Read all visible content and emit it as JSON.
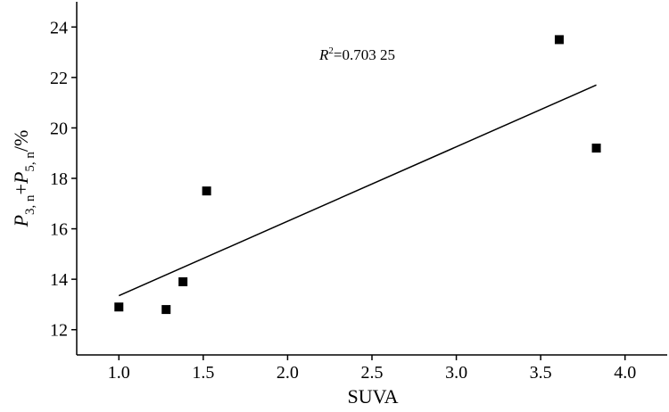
{
  "chart_data": {
    "type": "scatter",
    "xlabel": "SUVA",
    "ylabel": {
      "p1": "P",
      "s1": "3, n",
      "plus": "+",
      "p2": "P",
      "s2": "5, n",
      "unit": "/%"
    },
    "xlim": [
      0.75,
      4.25
    ],
    "ylim": [
      11,
      25
    ],
    "xticks": [
      1.0,
      1.5,
      2.0,
      2.5,
      3.0,
      3.5,
      4.0
    ],
    "xtick_labels": [
      "1.0",
      "1.5",
      "2.0",
      "2.5",
      "3.0",
      "3.5",
      "4.0"
    ],
    "yticks": [
      12,
      14,
      16,
      18,
      20,
      22,
      24
    ],
    "ytick_labels": [
      "12",
      "14",
      "16",
      "18",
      "20",
      "22",
      "24"
    ],
    "points": [
      {
        "x": 1.0,
        "y": 12.9
      },
      {
        "x": 1.28,
        "y": 12.8
      },
      {
        "x": 1.38,
        "y": 13.9
      },
      {
        "x": 1.52,
        "y": 17.5
      },
      {
        "x": 3.61,
        "y": 23.5
      },
      {
        "x": 3.83,
        "y": 19.2
      }
    ],
    "fit_line": {
      "x": [
        1.0,
        3.83
      ],
      "y": [
        13.35,
        21.7
      ]
    },
    "annotation": {
      "r": "R",
      "sup": "2",
      "rest": "=0.703 25"
    },
    "grid": false,
    "marker_color": "#000000"
  }
}
